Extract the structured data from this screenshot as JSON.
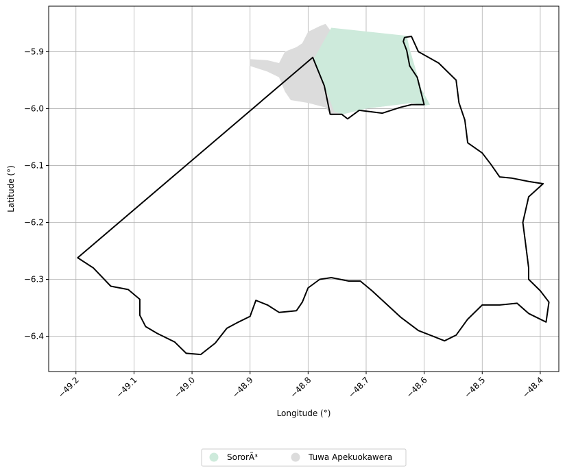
{
  "chart_data": {
    "type": "map",
    "xlabel": "Longitude (°)",
    "ylabel": "Latitude (°)",
    "xlim": [
      -49.247,
      -48.368
    ],
    "ylim": [
      -6.462,
      -5.82
    ],
    "grid": true,
    "legend_position": "bottom-center",
    "x_ticks": [
      {
        "value": -49.2,
        "label": "−49.2"
      },
      {
        "value": -49.1,
        "label": "−49.1"
      },
      {
        "value": -49.0,
        "label": "−49.0"
      },
      {
        "value": -48.9,
        "label": "−48.9"
      },
      {
        "value": -48.8,
        "label": "−48.8"
      },
      {
        "value": -48.7,
        "label": "−48.7"
      },
      {
        "value": -48.6,
        "label": "−48.6"
      },
      {
        "value": -48.5,
        "label": "−48.5"
      },
      {
        "value": -48.4,
        "label": "−48.4"
      }
    ],
    "y_ticks": [
      {
        "value": -5.9,
        "label": "−5.9"
      },
      {
        "value": -6.0,
        "label": "−6.0"
      },
      {
        "value": -6.1,
        "label": "−6.1"
      },
      {
        "value": -6.2,
        "label": "−6.2"
      },
      {
        "value": -6.3,
        "label": "−6.3"
      },
      {
        "value": -6.4,
        "label": "−6.4"
      }
    ],
    "areas": [
      {
        "name": "Tuwa Apekuokawera",
        "color": "#dcdcdc",
        "polygon": [
          [
            -48.77,
            -5.851
          ],
          [
            -48.78,
            -5.855
          ],
          [
            -48.8,
            -5.865
          ],
          [
            -48.81,
            -5.885
          ],
          [
            -48.82,
            -5.892
          ],
          [
            -48.84,
            -5.9
          ],
          [
            -48.85,
            -5.92
          ],
          [
            -48.87,
            -5.915
          ],
          [
            -48.9,
            -5.913
          ],
          [
            -48.9,
            -5.925
          ],
          [
            -48.87,
            -5.935
          ],
          [
            -48.85,
            -5.945
          ],
          [
            -48.84,
            -5.97
          ],
          [
            -48.83,
            -5.985
          ],
          [
            -48.8,
            -5.99
          ],
          [
            -48.77,
            -5.998
          ],
          [
            -48.76,
            -6.012
          ],
          [
            -48.74,
            -6.01
          ],
          [
            -48.7,
            -6.0
          ],
          [
            -48.66,
            -5.995
          ],
          [
            -48.62,
            -5.99
          ],
          [
            -48.6,
            -5.985
          ],
          [
            -48.61,
            -5.96
          ],
          [
            -48.62,
            -5.92
          ],
          [
            -48.63,
            -5.885
          ],
          [
            -48.64,
            -5.875
          ],
          [
            -48.76,
            -5.865
          ]
        ]
      },
      {
        "name": "SororÃ³",
        "color": "#cdeadb",
        "polygon": [
          [
            -48.76,
            -5.858
          ],
          [
            -48.63,
            -5.872
          ],
          [
            -48.625,
            -5.895
          ],
          [
            -48.615,
            -5.93
          ],
          [
            -48.605,
            -5.965
          ],
          [
            -48.59,
            -5.993
          ],
          [
            -48.6,
            -5.995
          ],
          [
            -48.62,
            -5.99
          ],
          [
            -48.66,
            -5.995
          ],
          [
            -48.7,
            -6.0
          ],
          [
            -48.74,
            -6.01
          ],
          [
            -48.755,
            -6.005
          ],
          [
            -48.79,
            -5.912
          ]
        ]
      }
    ],
    "boundary": {
      "color": "#000000",
      "polygon": [
        [
          -49.197,
          -6.262
        ],
        [
          -48.792,
          -5.91
        ],
        [
          -48.772,
          -5.96
        ],
        [
          -48.762,
          -6.01
        ],
        [
          -48.742,
          -6.01
        ],
        [
          -48.732,
          -6.018
        ],
        [
          -48.712,
          -6.003
        ],
        [
          -48.672,
          -6.008
        ],
        [
          -48.642,
          -5.998
        ],
        [
          -48.622,
          -5.993
        ],
        [
          -48.6,
          -5.993
        ],
        [
          -48.612,
          -5.945
        ],
        [
          -48.625,
          -5.925
        ],
        [
          -48.63,
          -5.898
        ],
        [
          -48.636,
          -5.882
        ],
        [
          -48.634,
          -5.875
        ],
        [
          -48.622,
          -5.873
        ],
        [
          -48.61,
          -5.9
        ],
        [
          -48.575,
          -5.92
        ],
        [
          -48.545,
          -5.95
        ],
        [
          -48.54,
          -5.99
        ],
        [
          -48.53,
          -6.02
        ],
        [
          -48.525,
          -6.06
        ],
        [
          -48.5,
          -6.078
        ],
        [
          -48.485,
          -6.098
        ],
        [
          -48.47,
          -6.12
        ],
        [
          -48.45,
          -6.122
        ],
        [
          -48.42,
          -6.128
        ],
        [
          -48.395,
          -6.132
        ],
        [
          -48.42,
          -6.155
        ],
        [
          -48.43,
          -6.2
        ],
        [
          -48.425,
          -6.24
        ],
        [
          -48.42,
          -6.28
        ],
        [
          -48.42,
          -6.3
        ],
        [
          -48.4,
          -6.32
        ],
        [
          -48.385,
          -6.34
        ],
        [
          -48.39,
          -6.375
        ],
        [
          -48.42,
          -6.36
        ],
        [
          -48.44,
          -6.342
        ],
        [
          -48.47,
          -6.345
        ],
        [
          -48.5,
          -6.345
        ],
        [
          -48.525,
          -6.37
        ],
        [
          -48.545,
          -6.398
        ],
        [
          -48.565,
          -6.408
        ],
        [
          -48.61,
          -6.39
        ],
        [
          -48.64,
          -6.367
        ],
        [
          -48.69,
          -6.32
        ],
        [
          -48.71,
          -6.303
        ],
        [
          -48.73,
          -6.303
        ],
        [
          -48.76,
          -6.297
        ],
        [
          -48.78,
          -6.3
        ],
        [
          -48.8,
          -6.315
        ],
        [
          -48.81,
          -6.34
        ],
        [
          -48.82,
          -6.355
        ],
        [
          -48.85,
          -6.358
        ],
        [
          -48.87,
          -6.345
        ],
        [
          -48.89,
          -6.337
        ],
        [
          -48.9,
          -6.365
        ],
        [
          -48.92,
          -6.375
        ],
        [
          -48.94,
          -6.386
        ],
        [
          -48.96,
          -6.412
        ],
        [
          -48.985,
          -6.432
        ],
        [
          -49.01,
          -6.43
        ],
        [
          -49.03,
          -6.41
        ],
        [
          -49.06,
          -6.395
        ],
        [
          -49.08,
          -6.383
        ],
        [
          -49.09,
          -6.363
        ],
        [
          -49.09,
          -6.335
        ],
        [
          -49.11,
          -6.318
        ],
        [
          -49.14,
          -6.312
        ],
        [
          -49.17,
          -6.28
        ]
      ]
    },
    "legend": [
      {
        "name": "SororÃ³",
        "color": "#cdeadb"
      },
      {
        "name": "Tuwa Apekuokawera",
        "color": "#dcdcdc"
      }
    ]
  }
}
